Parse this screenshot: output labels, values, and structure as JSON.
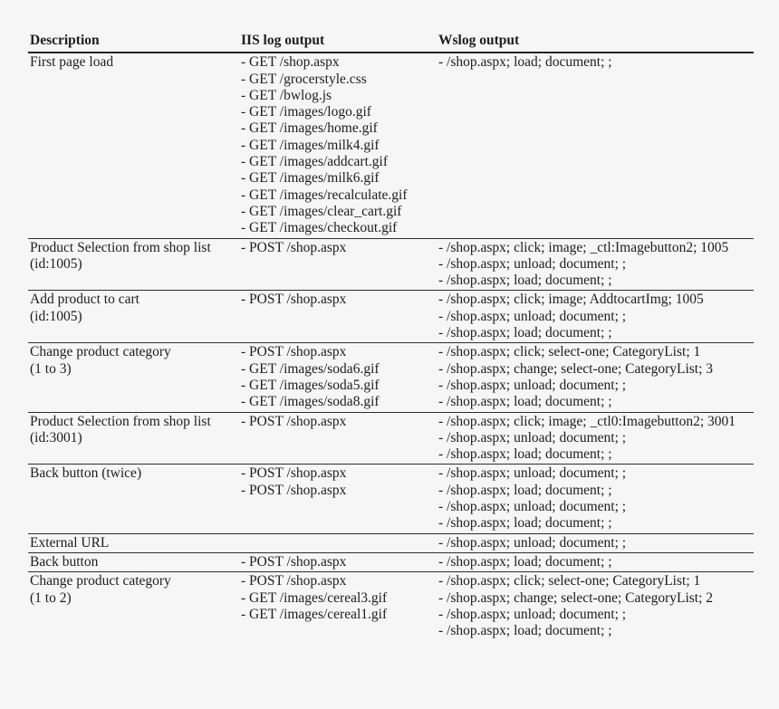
{
  "colors": {
    "background": "#f6f6f6",
    "text": "#1d1d1d",
    "rule": "#2e2e2e"
  },
  "table": {
    "columns": [
      "Description",
      "IIS log output",
      "Wslog output"
    ],
    "rows": [
      {
        "description": [
          "First page load"
        ],
        "iis": [
          "- GET /shop.aspx",
          "- GET /grocerstyle.css",
          "- GET /bwlog.js",
          "- GET /images/logo.gif",
          "- GET /images/home.gif",
          "- GET /images/milk4.gif",
          "- GET /images/addcart.gif",
          "- GET /images/milk6.gif",
          "- GET /images/recalculate.gif",
          "- GET /images/clear_cart.gif",
          "- GET /images/checkout.gif"
        ],
        "wslog": [
          "- /shop.aspx; load; document; ;"
        ]
      },
      {
        "description": [
          "Product Selection from shop list",
          "(id:1005)"
        ],
        "iis": [
          "- POST /shop.aspx"
        ],
        "wslog": [
          "- /shop.aspx; click; image; _ctl:Imagebutton2; 1005",
          "- /shop.aspx; unload; document; ;",
          "- /shop.aspx; load; document; ;"
        ]
      },
      {
        "description": [
          "Add product to cart",
          "(id:1005)"
        ],
        "iis": [
          "- POST /shop.aspx"
        ],
        "wslog": [
          "- /shop.aspx; click; image; AddtocartImg; 1005",
          "- /shop.aspx; unload; document; ;",
          "- /shop.aspx; load; document; ;"
        ]
      },
      {
        "description": [
          "Change product category",
          "(1 to 3)"
        ],
        "iis": [
          "- POST /shop.aspx",
          "- GET /images/soda6.gif",
          "- GET /images/soda5.gif",
          "- GET /images/soda8.gif"
        ],
        "wslog": [
          "- /shop.aspx; click; select-one; CategoryList; 1",
          "- /shop.aspx; change; select-one; CategoryList; 3",
          "- /shop.aspx; unload; document; ;",
          "- /shop.aspx; load; document; ;"
        ]
      },
      {
        "description": [
          "Product Selection from shop list",
          "(id:3001)"
        ],
        "iis": [
          "- POST /shop.aspx"
        ],
        "wslog": [
          "- /shop.aspx; click; image; _ctl0:Imagebutton2; 3001",
          "- /shop.aspx; unload; document; ;",
          "- /shop.aspx; load; document; ;"
        ]
      },
      {
        "description": [
          "Back button (twice)"
        ],
        "iis": [
          "- POST /shop.aspx",
          "- POST /shop.aspx"
        ],
        "wslog": [
          "- /shop.aspx; unload; document; ;",
          "- /shop.aspx; load; document; ;",
          "- /shop.aspx; unload; document; ;",
          "- /shop.aspx; load; document; ;"
        ]
      },
      {
        "description": [
          "External URL"
        ],
        "iis": [],
        "wslog": [
          "- /shop.aspx; unload; document; ;"
        ]
      },
      {
        "description": [
          "Back button"
        ],
        "iis": [
          "- POST /shop.aspx"
        ],
        "wslog": [
          "- /shop.aspx; load; document; ;"
        ]
      },
      {
        "description": [
          "Change product category",
          "(1 to 2)"
        ],
        "iis": [
          "- POST /shop.aspx",
          "- GET /images/cereal3.gif",
          "- GET /images/cereal1.gif"
        ],
        "wslog": [
          "- /shop.aspx; click; select-one; CategoryList; 1",
          "- /shop.aspx; change; select-one; CategoryList; 2",
          "- /shop.aspx; unload; document; ;",
          "- /shop.aspx; load; document; ;"
        ]
      }
    ]
  }
}
